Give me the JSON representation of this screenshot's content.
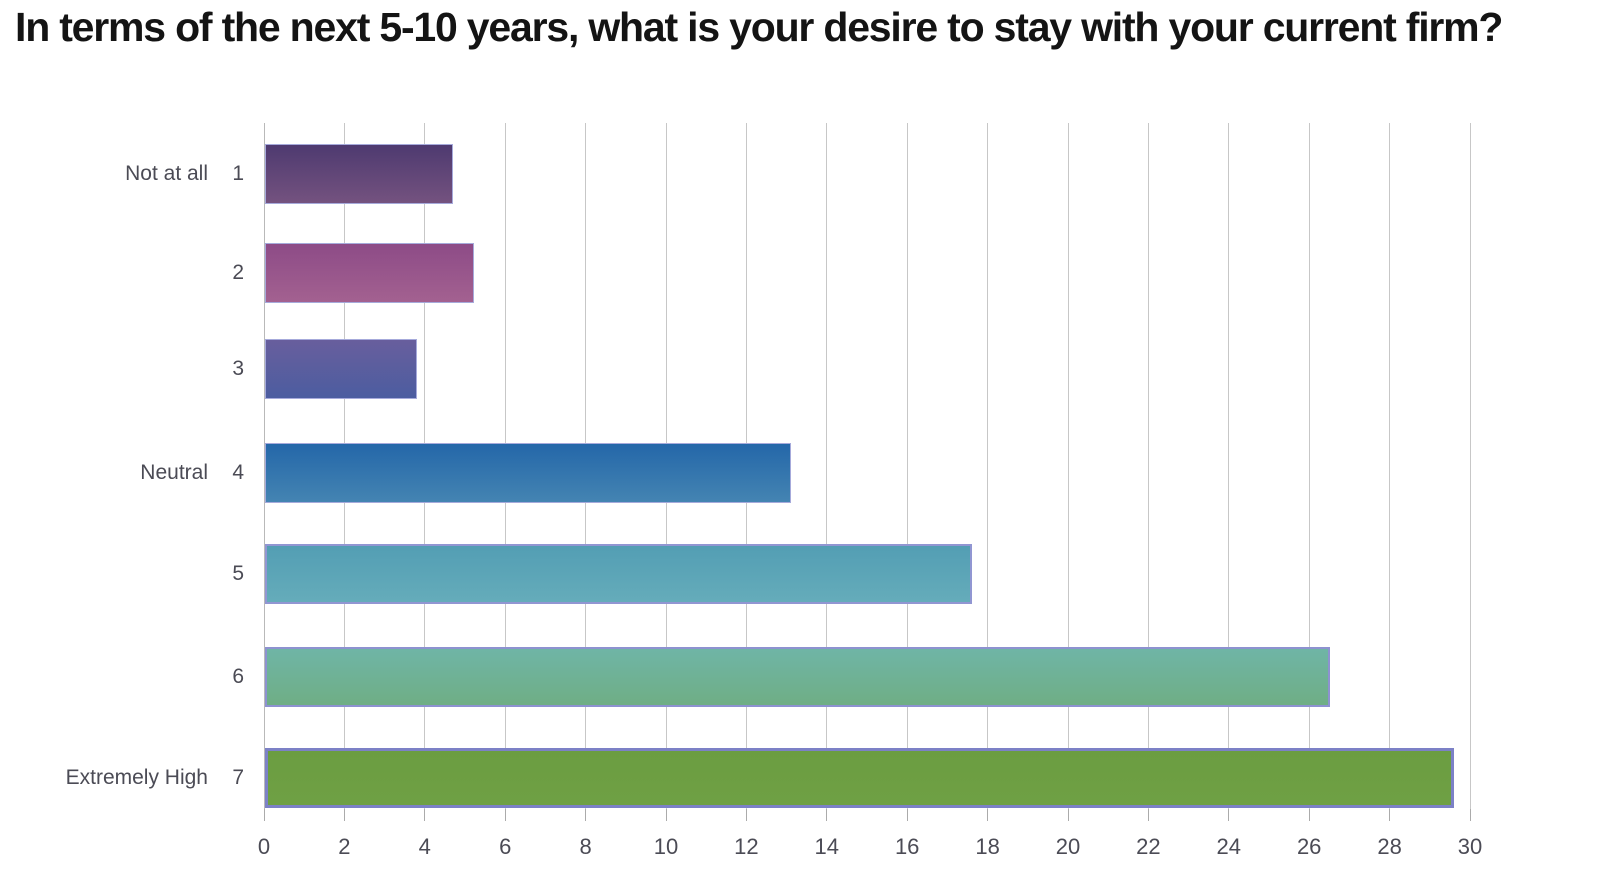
{
  "title": "In terms of the next 5-10 years, what is your desire to stay with your current firm?",
  "chart_data": {
    "type": "bar",
    "orientation": "horizontal",
    "title": "In terms of the next 5-10 years, what is your desire to stay with your current firm?",
    "xlabel": "",
    "ylabel": "",
    "xlim": [
      0,
      30
    ],
    "xticks": [
      0,
      2,
      4,
      6,
      8,
      10,
      12,
      14,
      16,
      18,
      20,
      22,
      24,
      26,
      28,
      30
    ],
    "grid": "vertical",
    "legend": "none",
    "categories": [
      {
        "group_label": "Not at all",
        "scale_label": "1"
      },
      {
        "group_label": "",
        "scale_label": "2"
      },
      {
        "group_label": "",
        "scale_label": "3"
      },
      {
        "group_label": "Neutral",
        "scale_label": "4"
      },
      {
        "group_label": "",
        "scale_label": "5"
      },
      {
        "group_label": "",
        "scale_label": "6"
      },
      {
        "group_label": "Extremely High",
        "scale_label": "7"
      }
    ],
    "values": [
      4.7,
      5.2,
      3.8,
      13.1,
      17.6,
      26.5,
      29.6
    ],
    "bar_styles": [
      {
        "color_top": "#4e3a70",
        "color_bottom": "#74527f",
        "border_color": "#a6aadb",
        "border_width": 1.5
      },
      {
        "color_top": "#8d4b87",
        "color_bottom": "#a36190",
        "border_color": "#a6aadb",
        "border_width": 1.5
      },
      {
        "color_top": "#685e9d",
        "color_bottom": "#4c5da0",
        "border_color": "#a6aadb",
        "border_width": 1.5
      },
      {
        "color_top": "#2467a9",
        "color_bottom": "#4484b2",
        "border_color": "#a6aadb",
        "border_width": 1.5
      },
      {
        "color_top": "#539eb4",
        "color_bottom": "#65acba",
        "border_color": "#9196d2",
        "border_width": 2
      },
      {
        "color_top": "#6fb5a6",
        "color_bottom": "#6fae85",
        "border_color": "#8d92d0",
        "border_width": 2
      },
      {
        "color_top": "#6b9d41",
        "color_bottom": "#6fa044",
        "border_color": "#7c81c6",
        "border_width": 3
      }
    ],
    "colors": {
      "gridline": "#c7c7c7",
      "axis_line": "#b9b9b9",
      "tick": "#ababab",
      "text": "#4b4b55",
      "title_text": "#141414",
      "background": "#ffffff"
    }
  }
}
